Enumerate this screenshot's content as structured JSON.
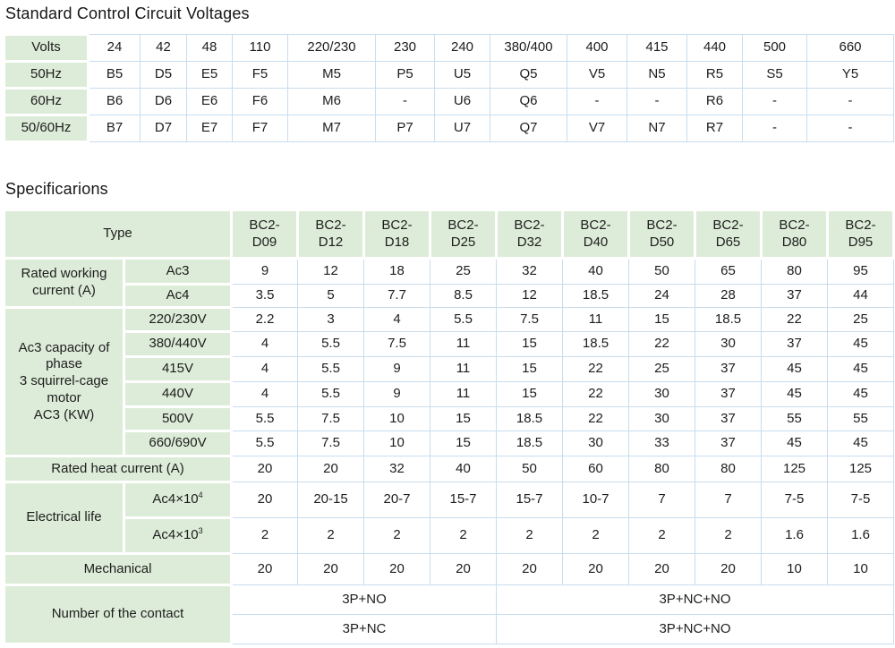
{
  "page": {
    "voltages_title": "Standard Control Circuit Voltages",
    "spec_title": "Specificarions"
  },
  "colors": {
    "header_green": "#ddecd8",
    "cell_border": "#c8ddee",
    "text": "#1d1d1d"
  },
  "voltage_table": {
    "header_label": "Volts",
    "header_values": [
      "24",
      "42",
      "48",
      "110",
      "220/230",
      "230",
      "240",
      "380/400",
      "400",
      "415",
      "440",
      "500",
      "660"
    ],
    "rows": [
      {
        "label": "50Hz",
        "values": [
          "B5",
          "D5",
          "E5",
          "F5",
          "M5",
          "P5",
          "U5",
          "Q5",
          "V5",
          "N5",
          "R5",
          "S5",
          "Y5"
        ]
      },
      {
        "label": "60Hz",
        "values": [
          "B6",
          "D6",
          "E6",
          "F6",
          "M6",
          "-",
          "U6",
          "Q6",
          "-",
          "-",
          "R6",
          "-",
          "-"
        ]
      },
      {
        "label": "50/60Hz",
        "values": [
          "B7",
          "D7",
          "E7",
          "F7",
          "M7",
          "P7",
          "U7",
          "Q7",
          "V7",
          "N7",
          "R7",
          "-",
          "-"
        ]
      }
    ]
  },
  "spec_table": {
    "type_label": "Type",
    "columns": [
      {
        "line1": "BC2-",
        "line2": "D09"
      },
      {
        "line1": "BC2-",
        "line2": "D12"
      },
      {
        "line1": "BC2-",
        "line2": "D18"
      },
      {
        "line1": "BC2-",
        "line2": "D25"
      },
      {
        "line1": "BC2-",
        "line2": "D32"
      },
      {
        "line1": "BC2-",
        "line2": "D40"
      },
      {
        "line1": "BC2-",
        "line2": "D50"
      },
      {
        "line1": "BC2-",
        "line2": "D65"
      },
      {
        "line1": "BC2-",
        "line2": "D80"
      },
      {
        "line1": "BC2-",
        "line2": "D95"
      }
    ],
    "sections": [
      {
        "label": "Rated working current (A)",
        "rows": [
          {
            "sub": "Ac3",
            "values": [
              "9",
              "12",
              "18",
              "25",
              "32",
              "40",
              "50",
              "65",
              "80",
              "95"
            ]
          },
          {
            "sub": "Ac4",
            "values": [
              "3.5",
              "5",
              "7.7",
              "8.5",
              "12",
              "18.5",
              "24",
              "28",
              "37",
              "44"
            ]
          }
        ]
      },
      {
        "label": "Ac3 capacity of\nphase\n3 squirrel-cage\nmotor\nAC3 (KW)",
        "rows": [
          {
            "sub": "220/230V",
            "values": [
              "2.2",
              "3",
              "4",
              "5.5",
              "7.5",
              "11",
              "15",
              "18.5",
              "22",
              "25"
            ]
          },
          {
            "sub": "380/440V",
            "values": [
              "4",
              "5.5",
              "7.5",
              "11",
              "15",
              "18.5",
              "22",
              "30",
              "37",
              "45"
            ]
          },
          {
            "sub": "415V",
            "values": [
              "4",
              "5.5",
              "9",
              "11",
              "15",
              "22",
              "25",
              "37",
              "45",
              "45"
            ]
          },
          {
            "sub": "440V",
            "values": [
              "4",
              "5.5",
              "9",
              "11",
              "15",
              "22",
              "30",
              "37",
              "45",
              "45"
            ]
          },
          {
            "sub": "500V",
            "values": [
              "5.5",
              "7.5",
              "10",
              "15",
              "18.5",
              "22",
              "30",
              "37",
              "55",
              "55"
            ]
          },
          {
            "sub": "660/690V",
            "values": [
              "5.5",
              "7.5",
              "10",
              "15",
              "18.5",
              "30",
              "33",
              "37",
              "45",
              "45"
            ]
          }
        ]
      },
      {
        "label": "Rated heat current (A)",
        "rows": [
          {
            "values": [
              "20",
              "20",
              "32",
              "40",
              "50",
              "60",
              "80",
              "80",
              "125",
              "125"
            ]
          }
        ]
      },
      {
        "label": "Electrical life",
        "rows": [
          {
            "sub": "Ac4×10",
            "sub_sup": "4",
            "values": [
              "20",
              "20-15",
              "20-7",
              "15-7",
              "15-7",
              "10-7",
              "7",
              "7",
              "7-5",
              "7-5"
            ]
          },
          {
            "sub": "Ac4×10",
            "sub_sup": "3",
            "values": [
              "2",
              "2",
              "2",
              "2",
              "2",
              "2",
              "2",
              "2",
              "1.6",
              "1.6"
            ]
          }
        ]
      },
      {
        "label": "Mechanical",
        "rows": [
          {
            "values": [
              "20",
              "20",
              "20",
              "20",
              "20",
              "20",
              "20",
              "20",
              "10",
              "10"
            ]
          }
        ]
      },
      {
        "label": "Number of the contact",
        "rows": [
          {
            "merged": [
              {
                "span": 4,
                "text": "3P+NO"
              },
              {
                "span": 6,
                "text": "3P+NC+NO"
              }
            ]
          },
          {
            "merged": [
              {
                "span": 4,
                "text": "3P+NC"
              },
              {
                "span": 6,
                "text": "3P+NC+NO"
              }
            ]
          }
        ]
      }
    ]
  }
}
